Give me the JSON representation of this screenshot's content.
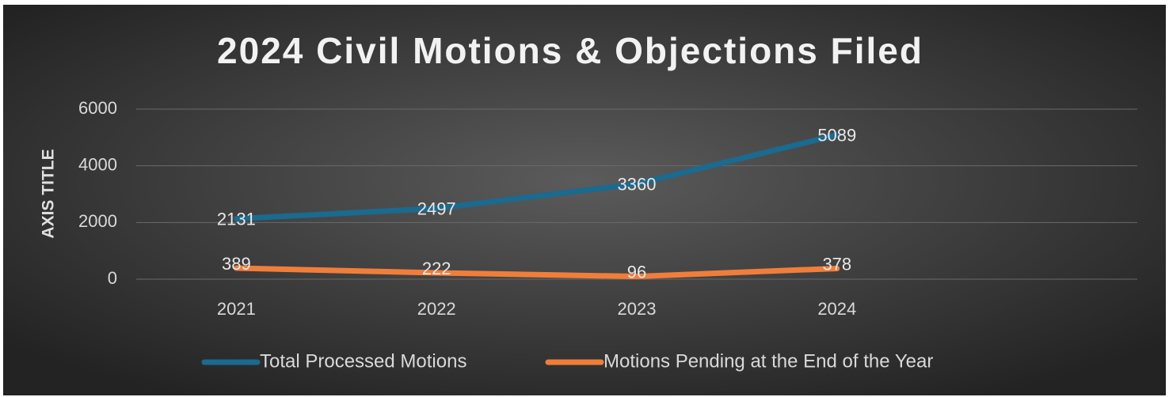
{
  "chart_data": {
    "type": "line",
    "title": "2024 Civil Motions & Objections Filed",
    "y_axis_label": "AXIS TITLE",
    "categories": [
      "2021",
      "2022",
      "2023",
      "2024",
      null
    ],
    "series": [
      {
        "name": "Total Processed Motions",
        "color": "#1b6a8f",
        "values": [
          2131,
          2497,
          3360,
          5089,
          null
        ]
      },
      {
        "name": "Motions Pending at the End of the Year",
        "color": "#f07e3a",
        "values": [
          389,
          222,
          96,
          378,
          null
        ]
      }
    ],
    "ylim": [
      0,
      6000
    ],
    "yticks": [
      0,
      2000,
      4000,
      6000
    ],
    "grid": true,
    "data_labels": true,
    "legend": "bottom"
  }
}
